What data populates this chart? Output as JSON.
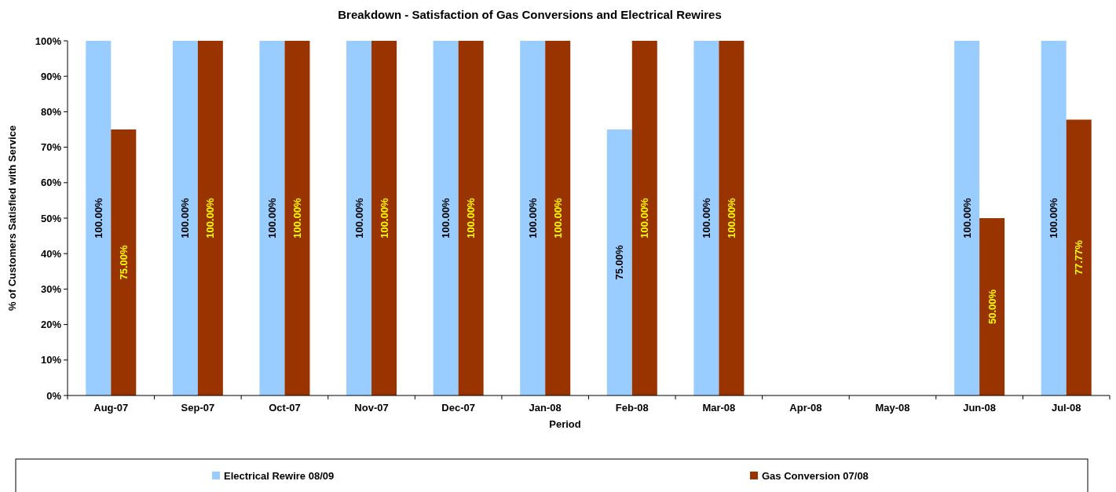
{
  "chart_data": {
    "type": "bar",
    "title": "Breakdown - Satisfaction of Gas Conversions and Electrical Rewires",
    "xlabel": "Period",
    "ylabel": "% of Customers Satisfied with Service",
    "categories": [
      "Aug-07",
      "Sep-07",
      "Oct-07",
      "Nov-07",
      "Dec-07",
      "Jan-08",
      "Feb-08",
      "Mar-08",
      "Apr-08",
      "May-08",
      "Jun-08",
      "Jul-08"
    ],
    "series": [
      {
        "name": "Electrical Rewire 08/09",
        "color": "#99ccff",
        "values": [
          100,
          100,
          100,
          100,
          100,
          100,
          75,
          100,
          null,
          null,
          100,
          100
        ],
        "value_labels": [
          "100.00%",
          "100.00%",
          "100.00%",
          "100.00%",
          "100.00%",
          "100.00%",
          "75.00%",
          "100.00%",
          null,
          null,
          "100.00%",
          "100.00%"
        ]
      },
      {
        "name": "Gas Conversion 07/08",
        "color": "#993300",
        "values": [
          75,
          100,
          100,
          100,
          100,
          100,
          100,
          100,
          null,
          null,
          50,
          77.77
        ],
        "value_labels": [
          "75.00%",
          "100.00%",
          "100.00%",
          "100.00%",
          "100.00%",
          "100.00%",
          "100.00%",
          "100.00%",
          null,
          null,
          "50.00%",
          "77.77%"
        ]
      }
    ],
    "ylim": [
      0,
      100
    ],
    "yticks": [
      {
        "value": 0,
        "label": "0%"
      },
      {
        "value": 10,
        "label": "10%"
      },
      {
        "value": 20,
        "label": "20%"
      },
      {
        "value": 30,
        "label": "30%"
      },
      {
        "value": 40,
        "label": "40%"
      },
      {
        "value": 50,
        "label": "50%"
      },
      {
        "value": 60,
        "label": "60%"
      },
      {
        "value": 70,
        "label": "70%"
      },
      {
        "value": 80,
        "label": "80%"
      },
      {
        "value": 90,
        "label": "90%"
      },
      {
        "value": 100,
        "label": "100%"
      }
    ],
    "legend": "bottom"
  }
}
